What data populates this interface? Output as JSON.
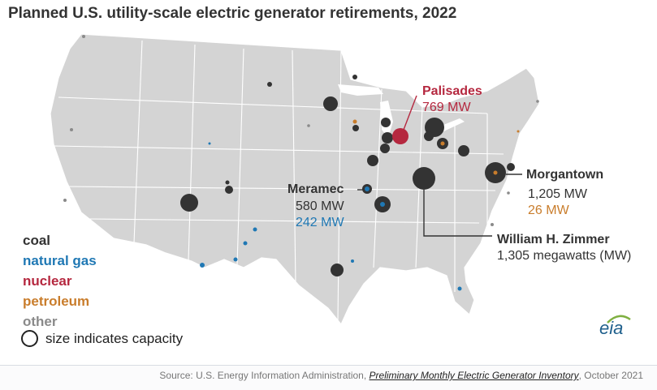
{
  "title": "Planned U.S. utility-scale electric generator retirements, 2022",
  "legend": {
    "coal": "coal",
    "natural_gas": "natural gas",
    "nuclear": "nuclear",
    "petroleum": "petroleum",
    "other": "other",
    "size_note": "size indicates capacity"
  },
  "colors": {
    "coal": "#333333",
    "natural_gas": "#1f78b4",
    "nuclear": "#b5283f",
    "petroleum": "#c97d2c",
    "other": "#8a8a8a",
    "land": "#d4d4d4"
  },
  "callouts": {
    "palisades": {
      "name": "Palisades",
      "capacity": "769 MW"
    },
    "meramec": {
      "name": "Meramec",
      "coal": "580 MW",
      "gas": "242 MW"
    },
    "morgantown": {
      "name": "Morgantown",
      "coal": "1,205 MW",
      "petroleum": "26 MW"
    },
    "zimmer": {
      "name": "William H. Zimmer",
      "capacity": "1,305 megawatts (MW)"
    }
  },
  "logo_text": "eia",
  "source": {
    "prefix": "Source: U.S. Energy Information Administration, ",
    "link": "Preliminary Monthly Electric Generator Inventory",
    "suffix": ", October 2021"
  }
}
